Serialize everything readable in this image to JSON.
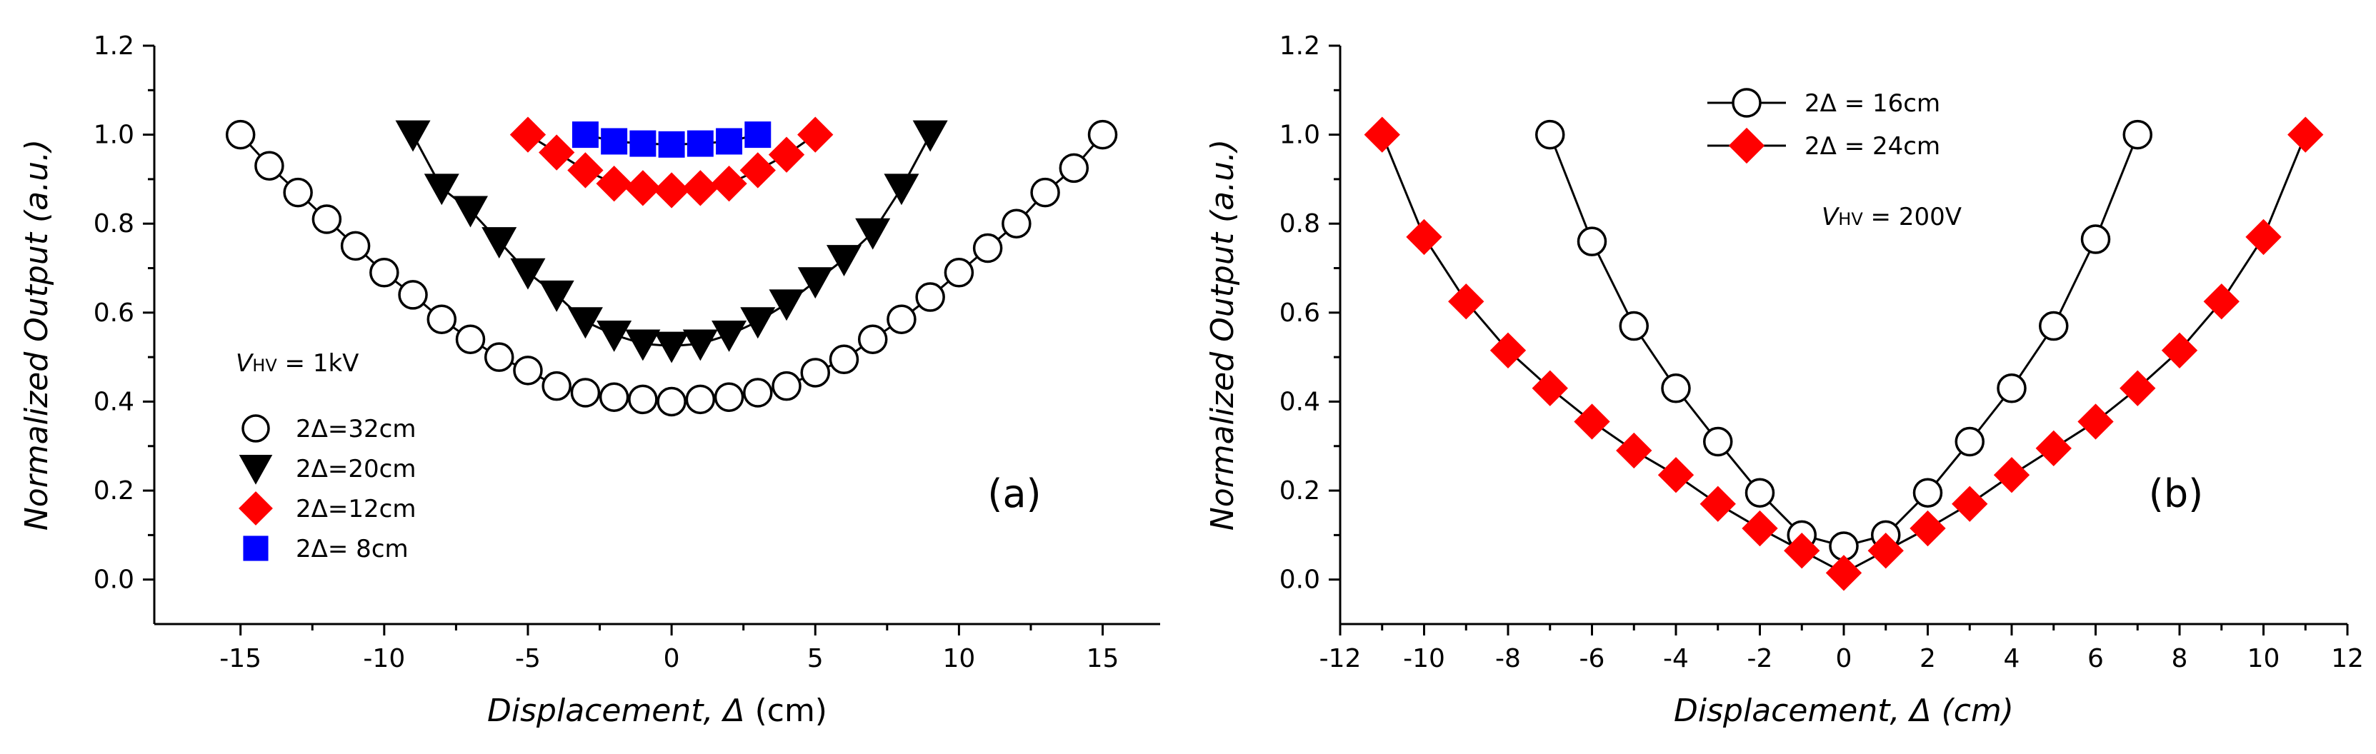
{
  "chart_data": [
    {
      "type": "scatter",
      "panel_label": "(a)",
      "xlabel": "Displacement, Δ (cm)",
      "xlabel_parts": [
        "Displacement, Δ",
        " (cm)"
      ],
      "ylabel": "Normalized Output (a.u.)",
      "xlim": [
        -18,
        17
      ],
      "ylim": [
        -0.1,
        1.2
      ],
      "x_ticks": [
        -15,
        -10,
        -5,
        0,
        5,
        10,
        15
      ],
      "x_tick_labels": [
        "-15",
        "-10",
        "-5",
        "0",
        "5",
        "10",
        "15"
      ],
      "y_ticks": [
        0.0,
        0.2,
        0.4,
        0.6,
        0.8,
        1.0,
        1.2
      ],
      "y_tick_labels": [
        "0.0",
        "0.2",
        "0.4",
        "0.6",
        "0.8",
        "1.0",
        "1.2"
      ],
      "legend_title": "V",
      "legend_title_sub": "HV",
      "legend_title_value": " = 1kV",
      "legend_position": "lower-left",
      "series": [
        {
          "name": "2Δ=32cm",
          "marker": "circle",
          "color": "#000000",
          "fill": "#ffffff",
          "line": true,
          "x": [
            -15,
            -14,
            -13,
            -12,
            -11,
            -10,
            -9,
            -8,
            -7,
            -6,
            -5,
            -4,
            -3,
            -2,
            -1,
            0,
            1,
            2,
            3,
            4,
            5,
            6,
            7,
            8,
            9,
            10,
            11,
            12,
            13,
            14,
            15
          ],
          "y": [
            1.0,
            0.93,
            0.87,
            0.81,
            0.75,
            0.69,
            0.64,
            0.585,
            0.54,
            0.5,
            0.47,
            0.435,
            0.42,
            0.41,
            0.405,
            0.4,
            0.405,
            0.41,
            0.42,
            0.435,
            0.465,
            0.495,
            0.54,
            0.585,
            0.635,
            0.69,
            0.745,
            0.8,
            0.87,
            0.925,
            1.0
          ]
        },
        {
          "name": "2Δ=20cm",
          "marker": "triangle-down",
          "color": "#000000",
          "fill": "#000000",
          "line": true,
          "x": [
            -9,
            -8,
            -7,
            -6,
            -5,
            -4,
            -3,
            -2,
            -1,
            0,
            1,
            2,
            3,
            4,
            5,
            6,
            7,
            8,
            9
          ],
          "y": [
            1.0,
            0.88,
            0.83,
            0.76,
            0.69,
            0.64,
            0.58,
            0.55,
            0.53,
            0.525,
            0.53,
            0.55,
            0.58,
            0.62,
            0.67,
            0.72,
            0.78,
            0.88,
            1.0
          ]
        },
        {
          "name": "2Δ=12cm",
          "marker": "diamond",
          "color": "#ff0000",
          "fill": "#ff0000",
          "line": true,
          "x": [
            -5,
            -4,
            -3,
            -2,
            -1,
            0,
            1,
            2,
            3,
            4,
            5
          ],
          "y": [
            1.0,
            0.96,
            0.92,
            0.89,
            0.88,
            0.875,
            0.88,
            0.89,
            0.92,
            0.955,
            1.0
          ]
        },
        {
          "name": "2Δ= 8cm",
          "marker": "square",
          "color": "#0000ff",
          "fill": "#0000ff",
          "line": true,
          "x": [
            -3,
            -2,
            -1,
            0,
            1,
            2,
            3
          ],
          "y": [
            1.0,
            0.985,
            0.98,
            0.978,
            0.98,
            0.985,
            1.0
          ]
        }
      ]
    },
    {
      "type": "scatter",
      "panel_label": "(b)",
      "xlabel": "Displacement, Δ (cm)",
      "xlabel_parts": [
        "Displacement, Δ (cm)",
        ""
      ],
      "ylabel": "Normalized Output (a.u.)",
      "xlim": [
        -12,
        12
      ],
      "ylim": [
        -0.1,
        1.2
      ],
      "x_ticks": [
        -12,
        -10,
        -8,
        -6,
        -4,
        -2,
        0,
        2,
        4,
        6,
        8,
        10,
        12
      ],
      "x_tick_labels": [
        "-12",
        "-10",
        "-8",
        "-6",
        "-4",
        "-2",
        "0",
        "2",
        "4",
        "6",
        "8",
        "10",
        "12"
      ],
      "y_ticks": [
        0.0,
        0.2,
        0.4,
        0.6,
        0.8,
        1.0,
        1.2
      ],
      "y_tick_labels": [
        "0.0",
        "0.2",
        "0.4",
        "0.6",
        "0.8",
        "1.0",
        "1.2"
      ],
      "legend_title": "V",
      "legend_title_sub": "HV",
      "legend_title_value": " = 200V",
      "legend_position": "top-center",
      "series": [
        {
          "name": "2Δ = 16cm",
          "marker": "circle",
          "color": "#000000",
          "fill": "#ffffff",
          "line": true,
          "x": [
            -7,
            -6,
            -5,
            -4,
            -3,
            -2,
            -1,
            0,
            1,
            2,
            3,
            4,
            5,
            6,
            7
          ],
          "y": [
            1.0,
            0.76,
            0.57,
            0.43,
            0.31,
            0.195,
            0.1,
            0.075,
            0.1,
            0.195,
            0.31,
            0.43,
            0.57,
            0.765,
            1.0
          ]
        },
        {
          "name": "2Δ = 24cm",
          "marker": "diamond",
          "color": "#ff0000",
          "fill": "#ff0000",
          "line": true,
          "x": [
            -11,
            -10,
            -9,
            -8,
            -7,
            -6,
            -5,
            -4,
            -3,
            -2,
            -1,
            0,
            1,
            2,
            3,
            4,
            5,
            6,
            7,
            8,
            9,
            10,
            11
          ],
          "y": [
            1.0,
            0.77,
            0.625,
            0.515,
            0.43,
            0.355,
            0.29,
            0.235,
            0.17,
            0.115,
            0.065,
            0.015,
            0.065,
            0.115,
            0.17,
            0.235,
            0.295,
            0.355,
            0.43,
            0.515,
            0.625,
            0.77,
            1.0
          ]
        }
      ]
    }
  ]
}
